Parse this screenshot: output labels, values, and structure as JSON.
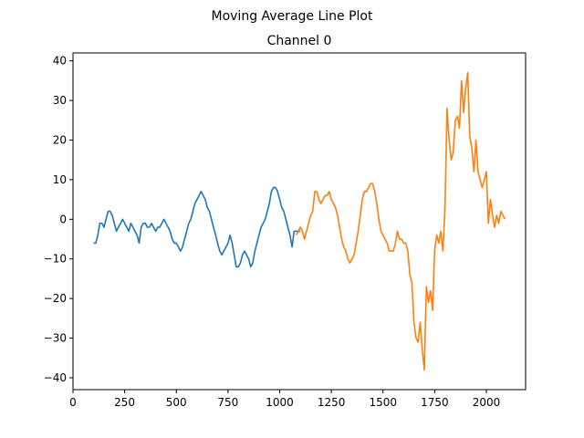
{
  "figure": {
    "suptitle": "Moving Average Line Plot",
    "background": "#ffffff"
  },
  "chart_data": {
    "type": "line",
    "title": "Channel 0",
    "xlabel": "",
    "ylabel": "",
    "xlim": [
      0,
      2190
    ],
    "ylim": [
      -43,
      42
    ],
    "xticks": [
      0,
      250,
      500,
      750,
      1000,
      1250,
      1500,
      1750,
      2000
    ],
    "yticks": [
      -40,
      -30,
      -20,
      -10,
      0,
      10,
      20,
      30,
      40
    ],
    "xtick_labels": [
      "0",
      "250",
      "500",
      "750",
      "1000",
      "1250",
      "1500",
      "1750",
      "2000"
    ],
    "ytick_labels": [
      "−40",
      "−30",
      "−20",
      "−10",
      "0",
      "10",
      "20",
      "30",
      "40"
    ],
    "grid": false,
    "legend": "none",
    "series": [
      {
        "color": "#1f77b4",
        "x": [
          100,
          110,
          120,
          130,
          140,
          150,
          160,
          170,
          180,
          190,
          200,
          210,
          220,
          230,
          240,
          250,
          260,
          270,
          280,
          290,
          300,
          310,
          320,
          330,
          340,
          350,
          360,
          370,
          380,
          390,
          400,
          410,
          420,
          430,
          440,
          450,
          460,
          470,
          480,
          490,
          500,
          510,
          520,
          530,
          540,
          550,
          560,
          570,
          580,
          590,
          600,
          610,
          620,
          630,
          640,
          650,
          660,
          670,
          680,
          690,
          700,
          710,
          720,
          730,
          740,
          750,
          760,
          770,
          780,
          790,
          800,
          810,
          820,
          830,
          840,
          850,
          860,
          870,
          880,
          890,
          900,
          910,
          920,
          930,
          940,
          950,
          960,
          970,
          980,
          990,
          1000,
          1010,
          1020,
          1030,
          1040,
          1050,
          1060,
          1070,
          1080,
          1090,
          1100
        ],
        "y": [
          -6,
          -6,
          -4,
          -1,
          -1,
          -2,
          0,
          2,
          2,
          1,
          -1,
          -3,
          -2,
          -1,
          0,
          -1,
          -2,
          -3,
          -1,
          -2,
          -3,
          -4,
          -6,
          -2,
          -1,
          -1,
          -2,
          -2,
          -1,
          -2,
          -3,
          -2,
          -2,
          -1,
          0,
          -1,
          -2,
          -3,
          -5,
          -6,
          -6,
          -7,
          -8,
          -7,
          -5,
          -3,
          -1,
          0,
          2,
          4,
          5,
          6,
          7,
          6,
          5,
          3,
          2,
          0,
          -2,
          -4,
          -6,
          -8,
          -9,
          -8,
          -7,
          -6,
          -4,
          -6,
          -9,
          -12,
          -12,
          -11,
          -9,
          -8,
          -9,
          -10,
          -12,
          -11,
          -8,
          -6,
          -4,
          -2,
          -1,
          0,
          2,
          4,
          7,
          8,
          8,
          7,
          5,
          3,
          2,
          0,
          -2,
          -4,
          -7,
          -3,
          -3,
          -3,
          -3
        ]
      },
      {
        "color": "#ff7f0e",
        "x": [
          1080,
          1090,
          1100,
          1110,
          1120,
          1130,
          1140,
          1150,
          1160,
          1170,
          1180,
          1190,
          1200,
          1210,
          1220,
          1230,
          1240,
          1250,
          1260,
          1270,
          1280,
          1290,
          1300,
          1310,
          1320,
          1330,
          1340,
          1350,
          1360,
          1370,
          1380,
          1390,
          1400,
          1410,
          1420,
          1430,
          1440,
          1450,
          1460,
          1470,
          1480,
          1490,
          1500,
          1510,
          1520,
          1530,
          1540,
          1550,
          1560,
          1570,
          1580,
          1590,
          1600,
          1610,
          1620,
          1630,
          1640,
          1650,
          1660,
          1670,
          1680,
          1690,
          1700,
          1710,
          1720,
          1730,
          1740,
          1750,
          1760,
          1770,
          1780,
          1790,
          1800,
          1810,
          1820,
          1830,
          1840,
          1850,
          1860,
          1870,
          1880,
          1890,
          1900,
          1910,
          1920,
          1930,
          1940,
          1950,
          1960,
          1970,
          1980,
          1990,
          2000,
          2010,
          2020,
          2030,
          2040,
          2050,
          2060,
          2070,
          2080,
          2090
        ],
        "y": [
          -4,
          -3,
          -2,
          -3,
          -5,
          -3,
          -1,
          1,
          2,
          7,
          7,
          5,
          4,
          5,
          6,
          6,
          7,
          5,
          4,
          3,
          1,
          -2,
          -5,
          -7,
          -8,
          -10,
          -11,
          -10,
          -9,
          -6,
          -3,
          1,
          5,
          7,
          7,
          8,
          9,
          9,
          7,
          4,
          0,
          -3,
          -4,
          -5,
          -6,
          -8,
          -8,
          -8,
          -6,
          -3,
          -5,
          -5,
          -6,
          -6,
          -8,
          -14,
          -16,
          -26,
          -30,
          -31,
          -26,
          -33,
          -38,
          -17,
          -21,
          -18,
          -23,
          -8,
          -4,
          -6,
          -3,
          -8,
          3,
          28,
          20,
          15,
          17,
          25,
          26,
          23,
          35,
          27,
          33,
          37,
          21,
          18,
          12,
          20,
          12,
          10,
          8,
          10,
          12,
          -1,
          5,
          1,
          -2,
          1,
          -1,
          2,
          1,
          0
        ]
      }
    ]
  }
}
